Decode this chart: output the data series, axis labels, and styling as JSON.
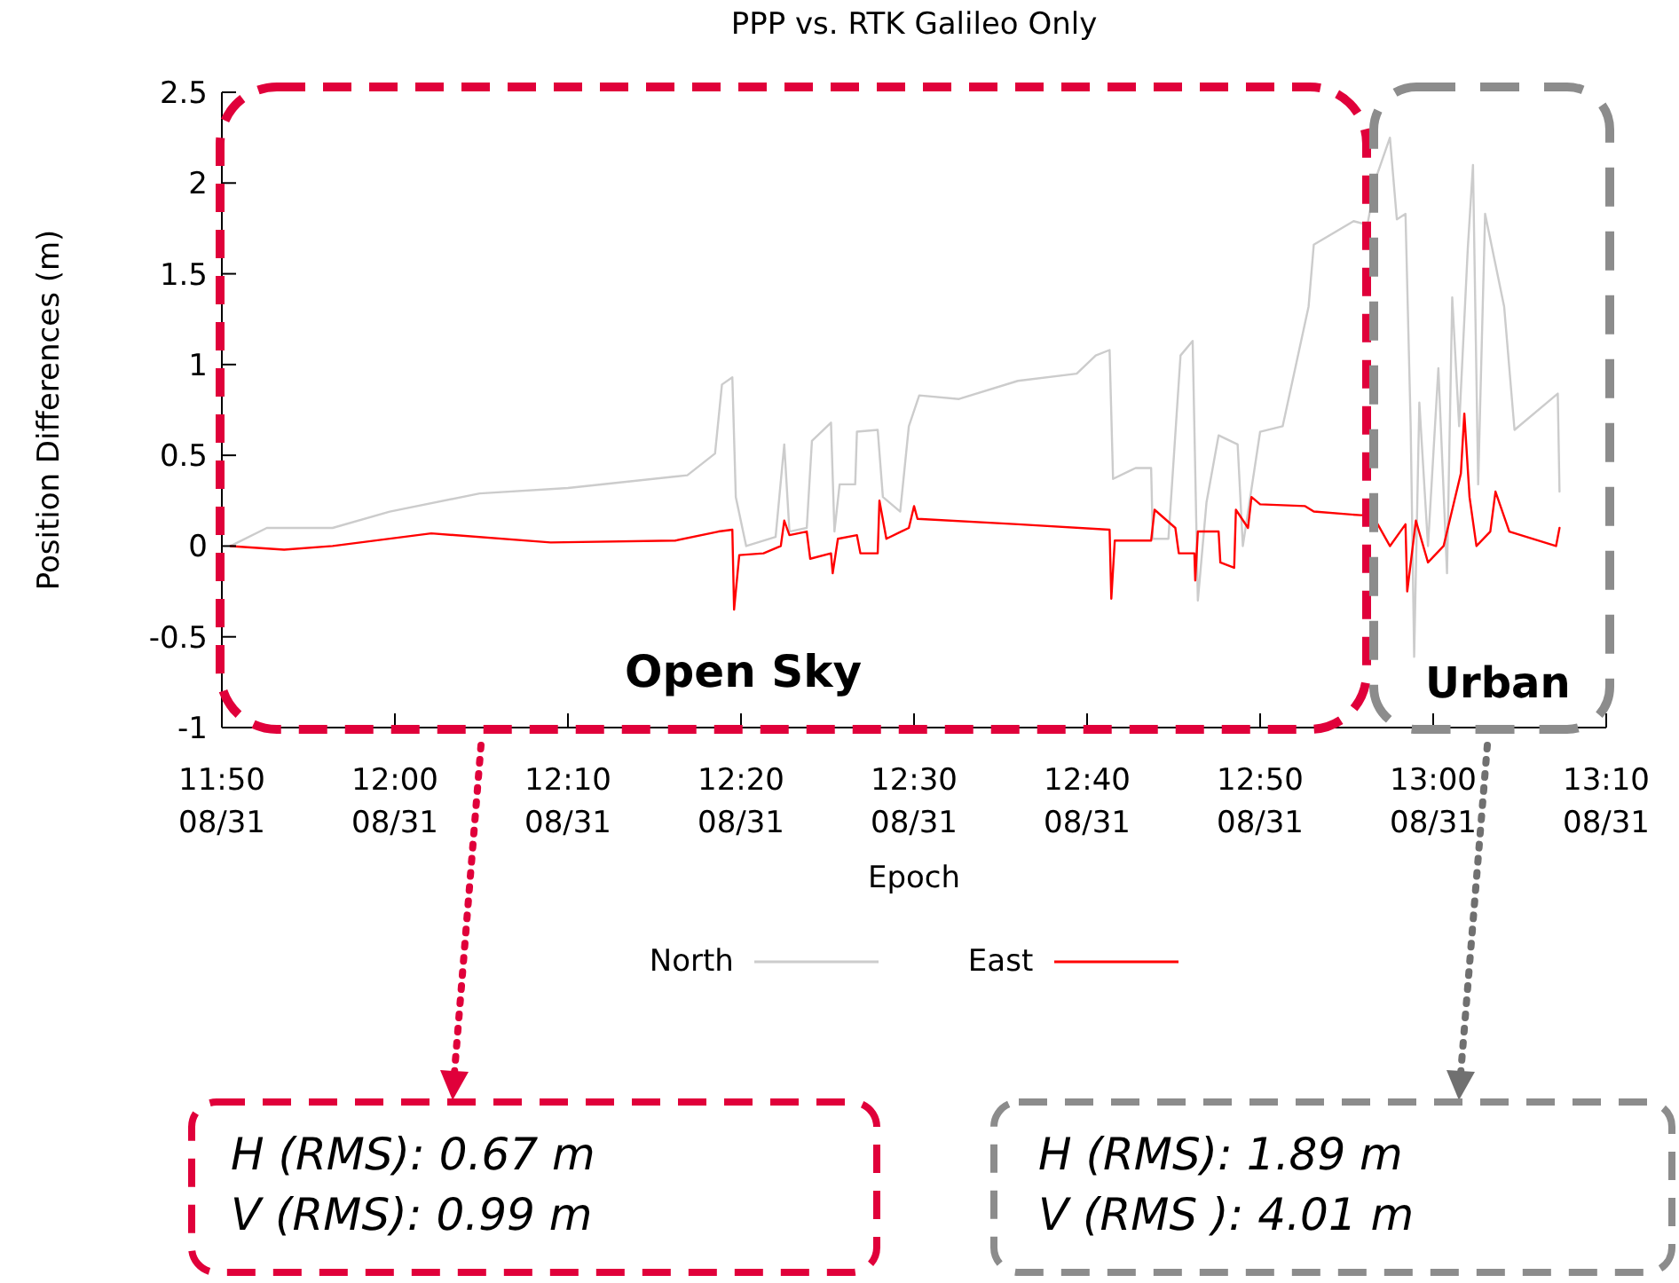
{
  "chart_data": {
    "type": "line",
    "title": "PPP vs. RTK Galileo Only",
    "xlabel": "Epoch",
    "ylabel": "Position Differences (m)",
    "xlim": [
      "--08-31T11:50",
      "--08-31T13:10"
    ],
    "xticks": [
      {
        "value": "--08-31T11:50",
        "label": "11:50\n08/31"
      },
      {
        "value": "--08-31T12:00",
        "label": "12:00\n08/31"
      },
      {
        "value": "--08-31T12:10",
        "label": "12:10\n08/31"
      },
      {
        "value": "--08-31T12:20",
        "label": "12:20\n08/31"
      },
      {
        "value": "--08-31T12:30",
        "label": "12:30\n08/31"
      },
      {
        "value": "--08-31T12:40",
        "label": "12:40\n08/31"
      },
      {
        "value": "--08-31T12:50",
        "label": "12:50\n08/31"
      },
      {
        "value": "--08-31T13:00",
        "label": "13:00\n08/31"
      },
      {
        "value": "--08-31T13:10",
        "label": "13:10\n08/31"
      }
    ],
    "ylim": [
      -1,
      2.5
    ],
    "yticks": [
      -1,
      -0.5,
      0,
      0.5,
      1,
      1.5,
      2,
      2.5
    ],
    "legend": "bottom",
    "line_style": "solid",
    "series": [
      {
        "name": "North",
        "color": "#cccccc",
        "x": [
          "--08-31T11:50:30",
          "--08-31T11:52:36",
          "--08-31T11:56:24",
          "--08-31T11:59:42",
          "--08-31T12:04:54",
          "--08-31T12:10:00",
          "--08-31T12:16:54",
          "--08-31T12:18:30",
          "--08-31T12:18:54",
          "--08-31T12:19:30",
          "--08-31T12:19:42",
          "--08-31T12:20:18",
          "--08-31T12:22:00",
          "--08-31T12:22:30",
          "--08-31T12:22:48",
          "--08-31T12:23:48",
          "--08-31T12:24:06",
          "--08-31T12:25:12",
          "--08-31T12:25:24",
          "--08-31T12:25:42",
          "--08-31T12:26:36",
          "--08-31T12:26:42",
          "--08-31T12:27:54",
          "--08-31T12:28:12",
          "--08-31T12:29:12",
          "--08-31T12:29:42",
          "--08-31T12:30:18",
          "--08-31T12:32:36",
          "--08-31T12:36:00",
          "--08-31T12:39:24",
          "--08-31T12:40:30",
          "--08-31T12:41:18",
          "--08-31T12:41:30",
          "--08-31T12:42:48",
          "--08-31T12:43:42",
          "--08-31T12:43:48",
          "--08-31T12:44:42",
          "--08-31T12:45:24",
          "--08-31T12:46:06",
          "--08-31T12:46:24",
          "--08-31T12:46:54",
          "--08-31T12:47:36",
          "--08-31T12:48:42",
          "--08-31T12:49:00",
          "--08-31T12:50:00",
          "--08-31T12:51:18",
          "--08-31T12:52:48",
          "--08-31T12:53:06",
          "--08-31T12:55:24",
          "--08-31T12:56:12",
          "--08-31T12:56:42",
          "--08-31T12:57:30",
          "--08-31T12:57:54",
          "--08-31T12:58:24",
          "--08-31T12:58:42",
          "--08-31T12:58:54",
          "--08-31T12:59:12",
          "--08-31T12:59:42",
          "--08-31T13:00:18",
          "--08-31T13:00:48",
          "--08-31T13:01:06",
          "--08-31T13:01:30",
          "--08-31T13:02:00",
          "--08-31T13:02:18",
          "--08-31T13:02:36",
          "--08-31T13:03:00",
          "--08-31T13:04:06",
          "--08-31T13:04:42",
          "--08-31T13:07:12",
          "--08-31T13:07:18"
        ],
        "values": [
          0,
          0.1,
          0.1,
          0.19,
          0.29,
          0.32,
          0.39,
          0.51,
          0.89,
          0.93,
          0.27,
          0,
          0.05,
          0.56,
          0.08,
          0.1,
          0.58,
          0.68,
          0.08,
          0.34,
          0.34,
          0.63,
          0.64,
          0.27,
          0.19,
          0.66,
          0.83,
          0.81,
          0.91,
          0.95,
          1.05,
          1.08,
          0.37,
          0.43,
          0.43,
          0.04,
          0.04,
          1.05,
          1.13,
          -0.3,
          0.24,
          0.61,
          0.56,
          0,
          0.63,
          0.66,
          1.32,
          1.66,
          1.79,
          1.77,
          2.03,
          2.25,
          1.8,
          1.83,
          0.66,
          -0.61,
          0.79,
          0,
          0.98,
          -0.15,
          1.37,
          0.66,
          1.64,
          2.1,
          0.34,
          1.83,
          1.32,
          0.64,
          0.84,
          0.3
        ]
      },
      {
        "name": "East",
        "color": "#ff0000",
        "x": [
          "--08-31T11:50:30",
          "--08-31T11:53:36",
          "--08-31T11:56:24",
          "--08-31T12:02:06",
          "--08-31T12:09:00",
          "--08-31T12:16:12",
          "--08-31T12:18:42",
          "--08-31T12:19:30",
          "--08-31T12:19:36",
          "--08-31T12:19:54",
          "--08-31T12:21:18",
          "--08-31T12:22:18",
          "--08-31T12:22:30",
          "--08-31T12:22:48",
          "--08-31T12:23:48",
          "--08-31T12:24:00",
          "--08-31T12:25:12",
          "--08-31T12:25:18",
          "--08-31T12:25:36",
          "--08-31T12:26:42",
          "--08-31T12:26:54",
          "--08-31T12:27:54",
          "--08-31T12:28:00",
          "--08-31T12:28:24",
          "--08-31T12:29:42",
          "--08-31T12:30:00",
          "--08-31T12:30:12",
          "--08-31T12:36:00",
          "--08-31T12:41:18",
          "--08-31T12:41:24",
          "--08-31T12:41:36",
          "--08-31T12:43:42",
          "--08-31T12:43:54",
          "--08-31T12:45:06",
          "--08-31T12:45:18",
          "--08-31T12:46:12",
          "--08-31T12:46:15",
          "--08-31T12:46:24",
          "--08-31T12:47:36",
          "--08-31T12:47:42",
          "--08-31T12:48:30",
          "--08-31T12:48:36",
          "--08-31T12:49:18",
          "--08-31T12:49:30",
          "--08-31T12:50:00",
          "--08-31T12:52:36",
          "--08-31T12:53:06",
          "--08-31T12:55:48",
          "--08-31T12:56:30",
          "--08-31T12:57:30",
          "--08-31T12:58:24",
          "--08-31T12:58:30",
          "--08-31T12:59:00",
          "--08-31T12:59:42",
          "--08-31T13:00:36",
          "--08-31T13:01:06",
          "--08-31T13:01:36",
          "--08-31T13:01:48",
          "--08-31T13:02:06",
          "--08-31T13:02:30",
          "--08-31T13:03:18",
          "--08-31T13:03:36",
          "--08-31T13:04:24",
          "--08-31T13:07:06",
          "--08-31T13:07:18"
        ],
        "values": [
          0,
          -0.02,
          0,
          0.07,
          0.02,
          0.03,
          0.08,
          0.09,
          -0.35,
          -0.05,
          -0.04,
          0,
          0.14,
          0.06,
          0.08,
          -0.07,
          -0.04,
          -0.15,
          0.04,
          0.06,
          -0.04,
          -0.04,
          0.25,
          0.04,
          0.1,
          0.22,
          0.15,
          0.12,
          0.09,
          -0.29,
          0.03,
          0.03,
          0.2,
          0.1,
          -0.04,
          -0.04,
          -0.19,
          0.08,
          0.08,
          -0.09,
          -0.12,
          0.2,
          0.1,
          0.27,
          0.23,
          0.22,
          0.19,
          0.17,
          0.17,
          0,
          0.12,
          -0.25,
          0.14,
          -0.09,
          0,
          0.2,
          0.4,
          0.73,
          0.27,
          0,
          0.08,
          0.3,
          0.08,
          0,
          0.1
        ]
      }
    ],
    "annotations": [
      "Open Sky",
      "Urban",
      "H (RMS): 0.67 m",
      "V (RMS): 0.99 m",
      "H (RMS): 1.89 m",
      "V (RMS ): 4.01 m"
    ]
  }
}
